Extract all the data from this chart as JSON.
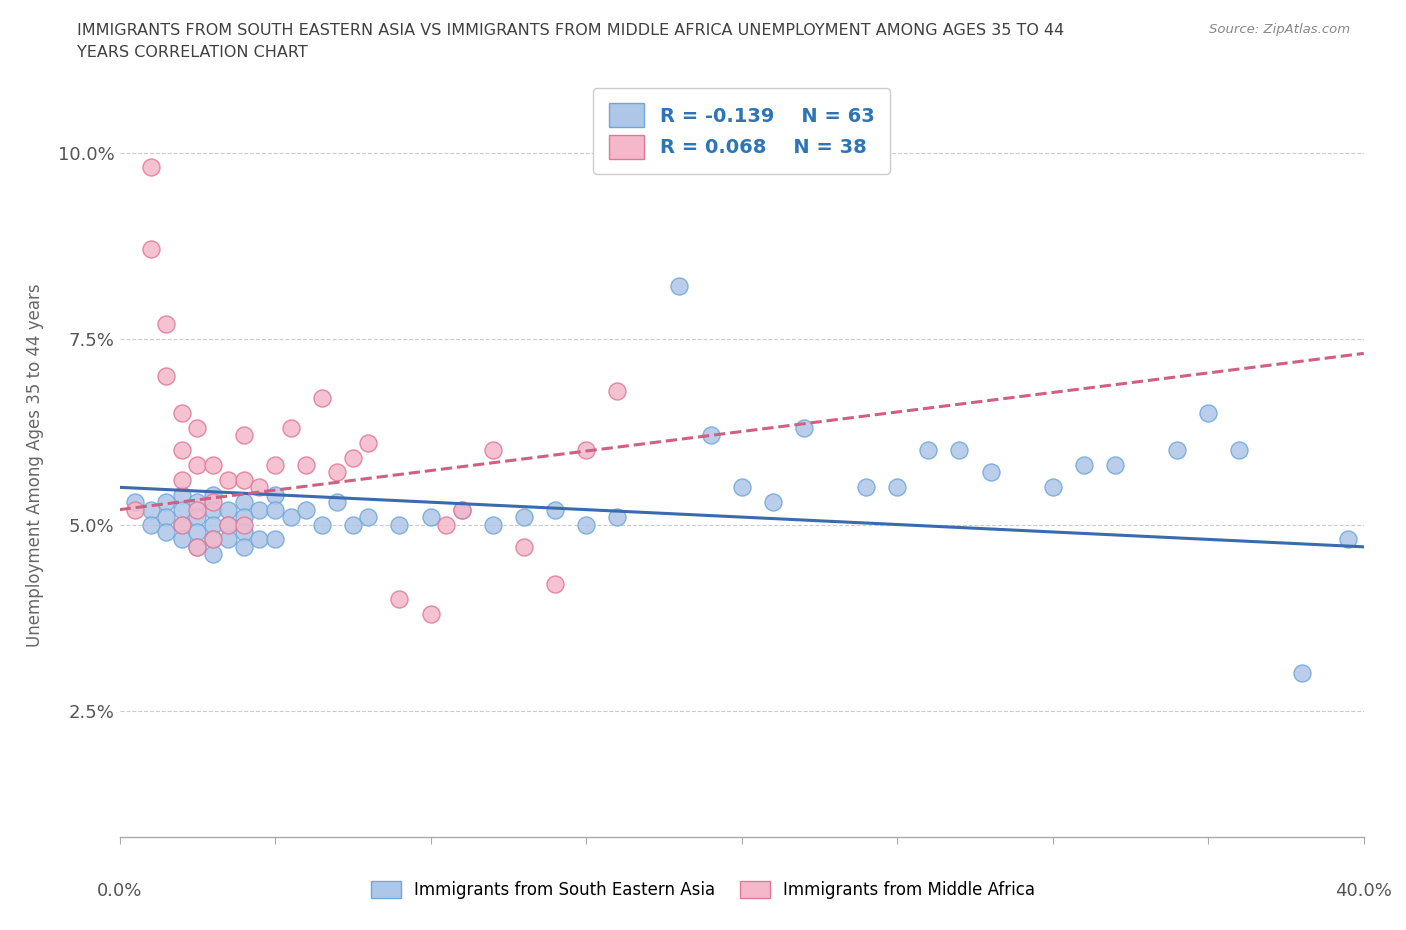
{
  "title_line1": "IMMIGRANTS FROM SOUTH EASTERN ASIA VS IMMIGRANTS FROM MIDDLE AFRICA UNEMPLOYMENT AMONG AGES 35 TO 44",
  "title_line2": "YEARS CORRELATION CHART",
  "source": "Source: ZipAtlas.com",
  "ylabel": "Unemployment Among Ages 35 to 44 years",
  "xlim": [
    0.0,
    0.4
  ],
  "ylim": [
    0.008,
    0.108
  ],
  "yticks": [
    0.025,
    0.05,
    0.075,
    0.1
  ],
  "ytick_labels": [
    "2.5%",
    "5.0%",
    "7.5%",
    "10.0%"
  ],
  "xticks": [
    0.0,
    0.05,
    0.1,
    0.15,
    0.2,
    0.25,
    0.3,
    0.35,
    0.4
  ],
  "series1_label": "Immigrants from South Eastern Asia",
  "series1_color": "#aec6e8",
  "series1_edge_color": "#6fa8d8",
  "series1_R": -0.139,
  "series1_N": 63,
  "series1_line_color": "#3a6ab0",
  "series2_label": "Immigrants from Middle Africa",
  "series2_color": "#f4b8ca",
  "series2_edge_color": "#e07898",
  "series2_R": 0.068,
  "series2_N": 38,
  "series2_line_color": "#d06080",
  "background_color": "#ffffff",
  "grid_color": "#cccccc",
  "title_color": "#404040",
  "legend_R_color": "#2e75b6",
  "series1_x": [
    0.005,
    0.01,
    0.01,
    0.015,
    0.015,
    0.015,
    0.02,
    0.02,
    0.02,
    0.02,
    0.025,
    0.025,
    0.025,
    0.025,
    0.03,
    0.03,
    0.03,
    0.03,
    0.03,
    0.035,
    0.035,
    0.035,
    0.04,
    0.04,
    0.04,
    0.04,
    0.045,
    0.045,
    0.05,
    0.05,
    0.05,
    0.055,
    0.06,
    0.065,
    0.07,
    0.075,
    0.08,
    0.09,
    0.1,
    0.11,
    0.12,
    0.13,
    0.14,
    0.15,
    0.16,
    0.18,
    0.19,
    0.2,
    0.21,
    0.22,
    0.24,
    0.25,
    0.26,
    0.27,
    0.28,
    0.3,
    0.31,
    0.32,
    0.34,
    0.35,
    0.36,
    0.38,
    0.395
  ],
  "series1_y": [
    0.053,
    0.052,
    0.05,
    0.053,
    0.051,
    0.049,
    0.054,
    0.052,
    0.05,
    0.048,
    0.053,
    0.051,
    0.049,
    0.047,
    0.054,
    0.052,
    0.05,
    0.048,
    0.046,
    0.052,
    0.05,
    0.048,
    0.053,
    0.051,
    0.049,
    0.047,
    0.052,
    0.048,
    0.054,
    0.052,
    0.048,
    0.051,
    0.052,
    0.05,
    0.053,
    0.05,
    0.051,
    0.05,
    0.051,
    0.052,
    0.05,
    0.051,
    0.052,
    0.05,
    0.051,
    0.082,
    0.062,
    0.055,
    0.053,
    0.063,
    0.055,
    0.055,
    0.06,
    0.06,
    0.057,
    0.055,
    0.058,
    0.058,
    0.06,
    0.065,
    0.06,
    0.03,
    0.048
  ],
  "series2_x": [
    0.005,
    0.01,
    0.01,
    0.015,
    0.015,
    0.02,
    0.02,
    0.02,
    0.02,
    0.025,
    0.025,
    0.025,
    0.025,
    0.03,
    0.03,
    0.03,
    0.035,
    0.035,
    0.04,
    0.04,
    0.04,
    0.045,
    0.05,
    0.055,
    0.06,
    0.065,
    0.07,
    0.075,
    0.08,
    0.09,
    0.1,
    0.105,
    0.11,
    0.12,
    0.13,
    0.14,
    0.15,
    0.16
  ],
  "series2_y": [
    0.052,
    0.098,
    0.087,
    0.077,
    0.07,
    0.065,
    0.06,
    0.056,
    0.05,
    0.063,
    0.058,
    0.052,
    0.047,
    0.058,
    0.053,
    0.048,
    0.056,
    0.05,
    0.062,
    0.056,
    0.05,
    0.055,
    0.058,
    0.063,
    0.058,
    0.067,
    0.057,
    0.059,
    0.061,
    0.04,
    0.038,
    0.05,
    0.052,
    0.06,
    0.047,
    0.042,
    0.06,
    0.068
  ],
  "trendline1_x0": 0.0,
  "trendline1_y0": 0.055,
  "trendline1_x1": 0.4,
  "trendline1_y1": 0.047,
  "trendline2_x0": 0.0,
  "trendline2_y0": 0.052,
  "trendline2_x1": 0.4,
  "trendline2_y1": 0.073
}
